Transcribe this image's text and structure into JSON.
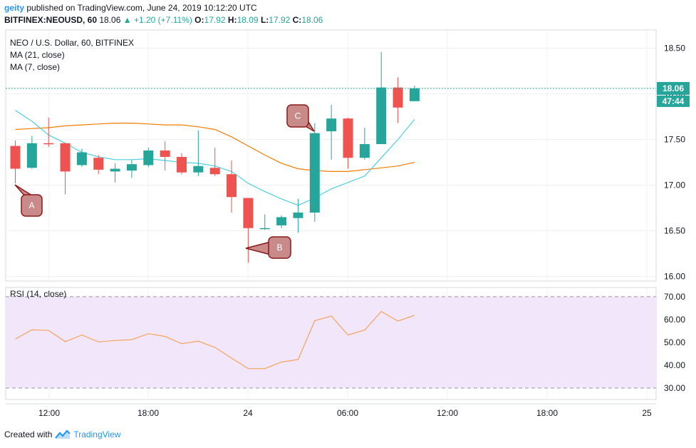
{
  "header": {
    "user": "geity",
    "published": "published on TradingView.com, June 24, 2019 10:12:20 UTC",
    "symbol": "BITFINEX:NEOUSD, 60",
    "last": "18.06",
    "change": "+1.20 (+7.11%)",
    "o_label": "O:",
    "o_val": "17.92",
    "h_label": "H:",
    "h_val": "18.09",
    "l_label": "L:",
    "l_val": "17.92",
    "c_label": "C:",
    "c_val": "18.06"
  },
  "legend": {
    "title": "NEO / U.S. Dollar, 60, BITFINEX",
    "ma21": "MA (21, close)",
    "ma7": "MA (7, close)",
    "rsi": "RSI (14, close)"
  },
  "footer": {
    "created": "Created with",
    "brand": "TradingView"
  },
  "colors": {
    "up": "#26a69a",
    "down": "#ef5350",
    "ma21": "#f57c00",
    "ma7": "#4dd0e1",
    "rsi": "#f5a35b",
    "rsi_band": "#f2e6fb",
    "callout": "#c98a8a"
  },
  "price_labels": {
    "last": "18.06",
    "countdown": "47:44"
  },
  "callouts": [
    "A",
    "B",
    "C"
  ],
  "chart_data": {
    "type": "candlestick",
    "price_axis": {
      "ylim": [
        15.95,
        18.7
      ],
      "ticks": [
        "16.00",
        "16.50",
        "17.00",
        "17.50",
        "18.00",
        "18.50"
      ]
    },
    "x_ticks": [
      "12:00",
      "18:00",
      "24",
      "06:00",
      "12:00",
      "18:00",
      "25"
    ],
    "candles": [
      {
        "o": 17.43,
        "h": 17.49,
        "l": 17.02,
        "c": 17.18
      },
      {
        "o": 17.19,
        "h": 17.54,
        "l": 17.18,
        "c": 17.46
      },
      {
        "o": 17.46,
        "h": 17.74,
        "l": 17.42,
        "c": 17.45
      },
      {
        "o": 17.46,
        "h": 17.46,
        "l": 16.9,
        "c": 17.15
      },
      {
        "o": 17.22,
        "h": 17.4,
        "l": 17.2,
        "c": 17.36
      },
      {
        "o": 17.3,
        "h": 17.33,
        "l": 17.12,
        "c": 17.17
      },
      {
        "o": 17.15,
        "h": 17.24,
        "l": 17.03,
        "c": 17.18
      },
      {
        "o": 17.16,
        "h": 17.28,
        "l": 17.08,
        "c": 17.23
      },
      {
        "o": 17.22,
        "h": 17.41,
        "l": 17.2,
        "c": 17.38
      },
      {
        "o": 17.38,
        "h": 17.48,
        "l": 17.16,
        "c": 17.31
      },
      {
        "o": 17.31,
        "h": 17.35,
        "l": 17.12,
        "c": 17.14
      },
      {
        "o": 17.14,
        "h": 17.6,
        "l": 17.1,
        "c": 17.21
      },
      {
        "o": 17.19,
        "h": 17.41,
        "l": 17.1,
        "c": 17.12
      },
      {
        "o": 17.12,
        "h": 17.27,
        "l": 16.7,
        "c": 16.87
      },
      {
        "o": 16.86,
        "h": 16.86,
        "l": 16.15,
        "c": 16.53
      },
      {
        "o": 16.53,
        "h": 16.68,
        "l": 16.51,
        "c": 16.53
      },
      {
        "o": 16.56,
        "h": 16.67,
        "l": 16.53,
        "c": 16.65
      },
      {
        "o": 16.64,
        "h": 16.85,
        "l": 16.48,
        "c": 16.7
      },
      {
        "o": 16.7,
        "h": 17.68,
        "l": 16.6,
        "c": 17.57
      },
      {
        "o": 17.59,
        "h": 17.88,
        "l": 17.28,
        "c": 17.73
      },
      {
        "o": 17.73,
        "h": 17.74,
        "l": 17.18,
        "c": 17.3
      },
      {
        "o": 17.3,
        "h": 17.63,
        "l": 17.28,
        "c": 17.45
      },
      {
        "o": 17.45,
        "h": 18.46,
        "l": 17.45,
        "c": 18.07
      },
      {
        "o": 18.07,
        "h": 18.18,
        "l": 17.68,
        "c": 17.85
      },
      {
        "o": 17.92,
        "h": 18.09,
        "l": 17.92,
        "c": 18.06
      }
    ],
    "ma7": [
      17.82,
      17.7,
      17.55,
      17.46,
      17.36,
      17.31,
      17.28,
      17.28,
      17.29,
      17.27,
      17.25,
      17.24,
      17.21,
      17.15,
      17.02,
      16.93,
      16.85,
      16.78,
      16.86,
      16.96,
      17.03,
      17.1,
      17.3,
      17.5,
      17.72
    ],
    "ma21": [
      17.61,
      17.62,
      17.63,
      17.65,
      17.66,
      17.67,
      17.68,
      17.68,
      17.67,
      17.66,
      17.66,
      17.64,
      17.61,
      17.53,
      17.43,
      17.33,
      17.24,
      17.18,
      17.16,
      17.15,
      17.15,
      17.17,
      17.19,
      17.21,
      17.25
    ],
    "rsi": {
      "ylim": [
        25,
        74
      ],
      "ticks": [
        "30.00",
        "40.00",
        "50.00",
        "60.00",
        "70.00"
      ],
      "band": [
        30,
        70
      ],
      "values": [
        51.5,
        55.5,
        55.2,
        50.3,
        53.2,
        50.2,
        50.8,
        51.2,
        53.8,
        52.6,
        49.4,
        50.5,
        47.8,
        43.1,
        38.5,
        38.5,
        41.4,
        42.5,
        59.5,
        61.5,
        53.2,
        55.4,
        63.5,
        59.3,
        61.8
      ]
    }
  }
}
